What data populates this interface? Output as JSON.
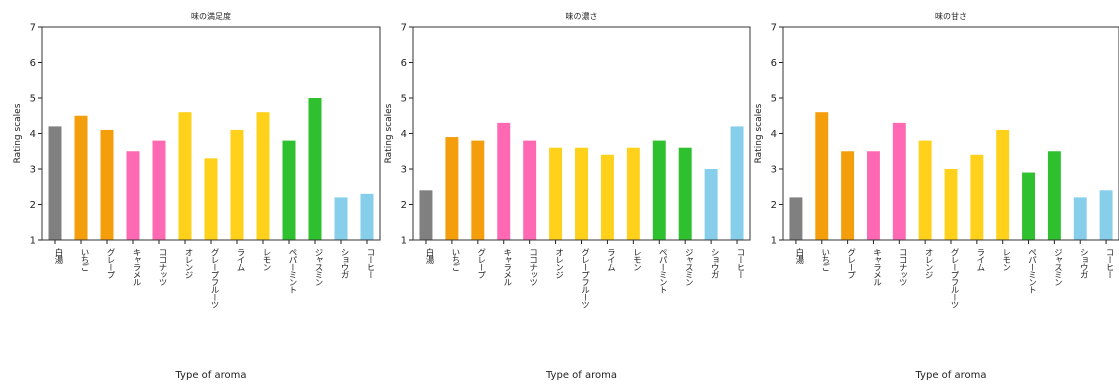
{
  "chart_data": [
    {
      "type": "bar",
      "title": "味の満足度",
      "xlabel": "Type of aroma",
      "ylabel": "Rating scales",
      "ylim": [
        1,
        7
      ],
      "yticks": [
        1,
        2,
        3,
        4,
        5,
        6,
        7
      ],
      "grid": false,
      "categories": [
        "白湯",
        "いちご",
        "グレープ",
        "キャラメル",
        "ココナッツ",
        "オレンジ",
        "グレープフルーツ",
        "ライム",
        "レモン",
        "ペパーミント",
        "ジャスミン",
        "ショウガ",
        "コーヒー"
      ],
      "values": [
        4.2,
        4.5,
        4.1,
        3.5,
        3.8,
        4.6,
        3.3,
        4.1,
        4.6,
        3.8,
        5.0,
        2.2,
        2.3
      ],
      "colors": [
        "#808080",
        "#f59e0b",
        "#f59e0b",
        "#ff69b4",
        "#ff69b4",
        "#ffd11a",
        "#ffd11a",
        "#ffd11a",
        "#ffd11a",
        "#2ec02e",
        "#2ec02e",
        "#87ceeb",
        "#87ceeb"
      ]
    },
    {
      "type": "bar",
      "title": "味の濃さ",
      "xlabel": "Type of aroma",
      "ylabel": "Rating scales",
      "ylim": [
        1,
        7
      ],
      "yticks": [
        1,
        2,
        3,
        4,
        5,
        6,
        7
      ],
      "grid": false,
      "categories": [
        "白湯",
        "いちご",
        "グレープ",
        "キャラメル",
        "ココナッツ",
        "オレンジ",
        "グレープフルーツ",
        "ライム",
        "レモン",
        "ペパーミント",
        "ジャスミン",
        "ショウガ",
        "コーヒー"
      ],
      "values": [
        2.4,
        3.9,
        3.8,
        4.3,
        3.8,
        3.6,
        3.6,
        3.4,
        3.6,
        3.8,
        3.6,
        3.0,
        4.2
      ],
      "colors": [
        "#808080",
        "#f59e0b",
        "#f59e0b",
        "#ff69b4",
        "#ff69b4",
        "#ffd11a",
        "#ffd11a",
        "#ffd11a",
        "#ffd11a",
        "#2ec02e",
        "#2ec02e",
        "#87ceeb",
        "#87ceeb"
      ]
    },
    {
      "type": "bar",
      "title": "味の甘さ",
      "xlabel": "Type of aroma",
      "ylabel": "Rating scales",
      "ylim": [
        1,
        7
      ],
      "yticks": [
        1,
        2,
        3,
        4,
        5,
        6,
        7
      ],
      "grid": false,
      "categories": [
        "白湯",
        "いちご",
        "グレープ",
        "キャラメル",
        "ココナッツ",
        "オレンジ",
        "グレープフルーツ",
        "ライム",
        "レモン",
        "ペパーミント",
        "ジャスミン",
        "ショウガ",
        "コーヒー"
      ],
      "values": [
        2.2,
        4.6,
        3.5,
        3.5,
        4.3,
        3.8,
        3.0,
        3.4,
        4.1,
        2.9,
        3.5,
        2.2,
        2.4
      ],
      "colors": [
        "#808080",
        "#f59e0b",
        "#f59e0b",
        "#ff69b4",
        "#ff69b4",
        "#ffd11a",
        "#ffd11a",
        "#ffd11a",
        "#ffd11a",
        "#2ec02e",
        "#2ec02e",
        "#87ceeb",
        "#87ceeb"
      ]
    }
  ]
}
